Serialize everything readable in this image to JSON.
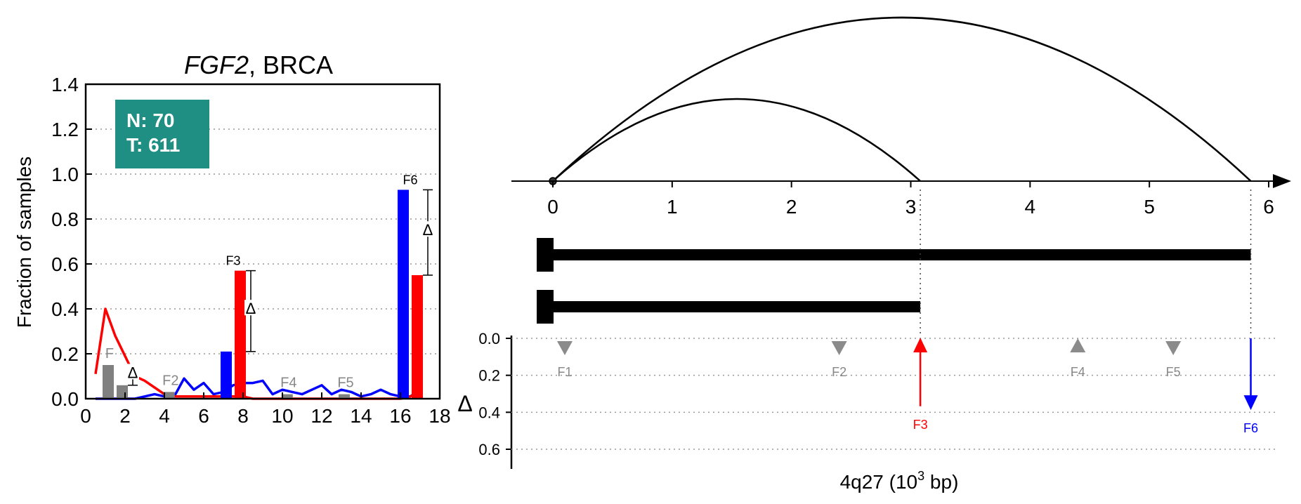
{
  "chart_data": [
    {
      "type": "bar",
      "title_italic": "FGF2",
      "title_rest": ", BRCA",
      "ylabel": "Fraction of samples",
      "xlim": [
        0,
        18
      ],
      "ylim": [
        0,
        1.4
      ],
      "xticks": [
        "0",
        "2",
        "4",
        "6",
        "8",
        "10",
        "12",
        "14",
        "16",
        "18"
      ],
      "yticks": [
        "0.0",
        "0.2",
        "0.4",
        "0.6",
        "0.8",
        "1.0",
        "1.2",
        "1.4"
      ],
      "grid": "horizontal-dotted",
      "counts_box": {
        "n_label": "N: 70",
        "t_label": "T: 611",
        "color": "#1e8f82"
      },
      "colors": {
        "normal": "#0000ff",
        "tumor": "#ff0000",
        "gray": "#808080"
      },
      "series": [
        {
          "id": "normal",
          "x": [
            0.5,
            1,
            1.5,
            2,
            2.5,
            3,
            3.5,
            4,
            4.5,
            5,
            5.5,
            6,
            6.5,
            7,
            7.5,
            8,
            8.5,
            9,
            9.5,
            10,
            10.5,
            11,
            11.5,
            12,
            12.5,
            13,
            13.5,
            14,
            14.5,
            15,
            15.5,
            16,
            16.5,
            17
          ],
          "values": [
            0,
            0,
            0,
            0,
            0,
            0.01,
            0.02,
            0.01,
            0.01,
            0.09,
            0.04,
            0.07,
            0.02,
            0.03,
            0.06,
            0.07,
            0.07,
            0.08,
            0.02,
            0.04,
            0.03,
            0.02,
            0.04,
            0.06,
            0.02,
            0.04,
            0.03,
            0.01,
            0.02,
            0.04,
            0.02,
            0.01,
            0.01,
            0.04
          ]
        },
        {
          "id": "tumor",
          "x": [
            0.5,
            1,
            1.5,
            2,
            2.5,
            3,
            3.5,
            4,
            4.5,
            5,
            5.5,
            6,
            6.5,
            7,
            7.5,
            8,
            8.5,
            9,
            9.5,
            10,
            10.5,
            11,
            11.5,
            12,
            12.5,
            13,
            13.5,
            14,
            14.5,
            15,
            15.5,
            16,
            16.5,
            17
          ],
          "values": [
            0.11,
            0.4,
            0.28,
            0.19,
            0.1,
            0.08,
            0.05,
            0.02,
            0.01,
            0.01,
            0.01,
            0.01,
            0.01,
            0.01,
            0.01,
            0.01,
            0,
            0,
            0,
            0,
            0,
            0,
            0,
            0,
            0,
            0,
            0,
            0,
            0,
            0,
            0,
            0,
            0.01,
            0.03
          ]
        }
      ],
      "bar_groups": [
        {
          "feature": "F1",
          "label": "F",
          "x": 1.5,
          "normal": 0.15,
          "tumor": 0.06,
          "significant": false,
          "delta": "Δ"
        },
        {
          "feature": "F2",
          "label": "F2",
          "x": 4.6,
          "normal": 0.03,
          "tumor": 0.01,
          "significant": false,
          "delta": ""
        },
        {
          "feature": "F3",
          "label": "F3",
          "x": 7.5,
          "normal": 0.21,
          "tumor": 0.57,
          "significant": true,
          "delta": "Δ"
        },
        {
          "feature": "F4",
          "label": "F4",
          "x": 10.6,
          "normal": 0.02,
          "tumor": 0.01,
          "significant": false,
          "delta": ""
        },
        {
          "feature": "F5",
          "label": "F5",
          "x": 13.5,
          "normal": 0.02,
          "tumor": 0.01,
          "significant": false,
          "delta": ""
        },
        {
          "feature": "F6",
          "label": "F6",
          "x": 16.5,
          "normal": 0.93,
          "tumor": 0.55,
          "significant": true,
          "delta": "Δ"
        }
      ]
    },
    {
      "type": "diagram",
      "xlabel_prefix": "4q27 (10",
      "xlabel_sup": "3",
      "xlabel_suffix": " bp)",
      "xlim": [
        0,
        6
      ],
      "xticks": [
        "0",
        "1",
        "2",
        "3",
        "4",
        "5",
        "6"
      ],
      "arcs": [
        {
          "from": 0,
          "to": 3.08
        },
        {
          "from": 0,
          "to": 5.85
        }
      ],
      "tracks": [
        {
          "start": 0,
          "end": 5.85
        },
        {
          "start": 0,
          "end": 3.08
        }
      ],
      "delta_axis": {
        "label": "Δ",
        "ylim": [
          0,
          0.7
        ],
        "yticks": [
          "0.0",
          "0.2",
          "0.4",
          "0.6"
        ]
      },
      "features": [
        {
          "name": "F1",
          "x": 0.1,
          "delta": 0.0,
          "direction": "down",
          "significant": false
        },
        {
          "name": "F2",
          "x": 2.4,
          "delta": 0.0,
          "direction": "down",
          "significant": false
        },
        {
          "name": "F3",
          "x": 3.08,
          "delta": 0.36,
          "direction": "up",
          "significant": true,
          "color": "#ff0000"
        },
        {
          "name": "F4",
          "x": 4.4,
          "delta": 0.0,
          "direction": "up",
          "significant": false
        },
        {
          "name": "F5",
          "x": 5.2,
          "delta": 0.0,
          "direction": "down",
          "significant": false
        },
        {
          "name": "F6",
          "x": 5.85,
          "delta": 0.38,
          "direction": "down",
          "significant": true,
          "color": "#0000ff"
        }
      ]
    }
  ]
}
